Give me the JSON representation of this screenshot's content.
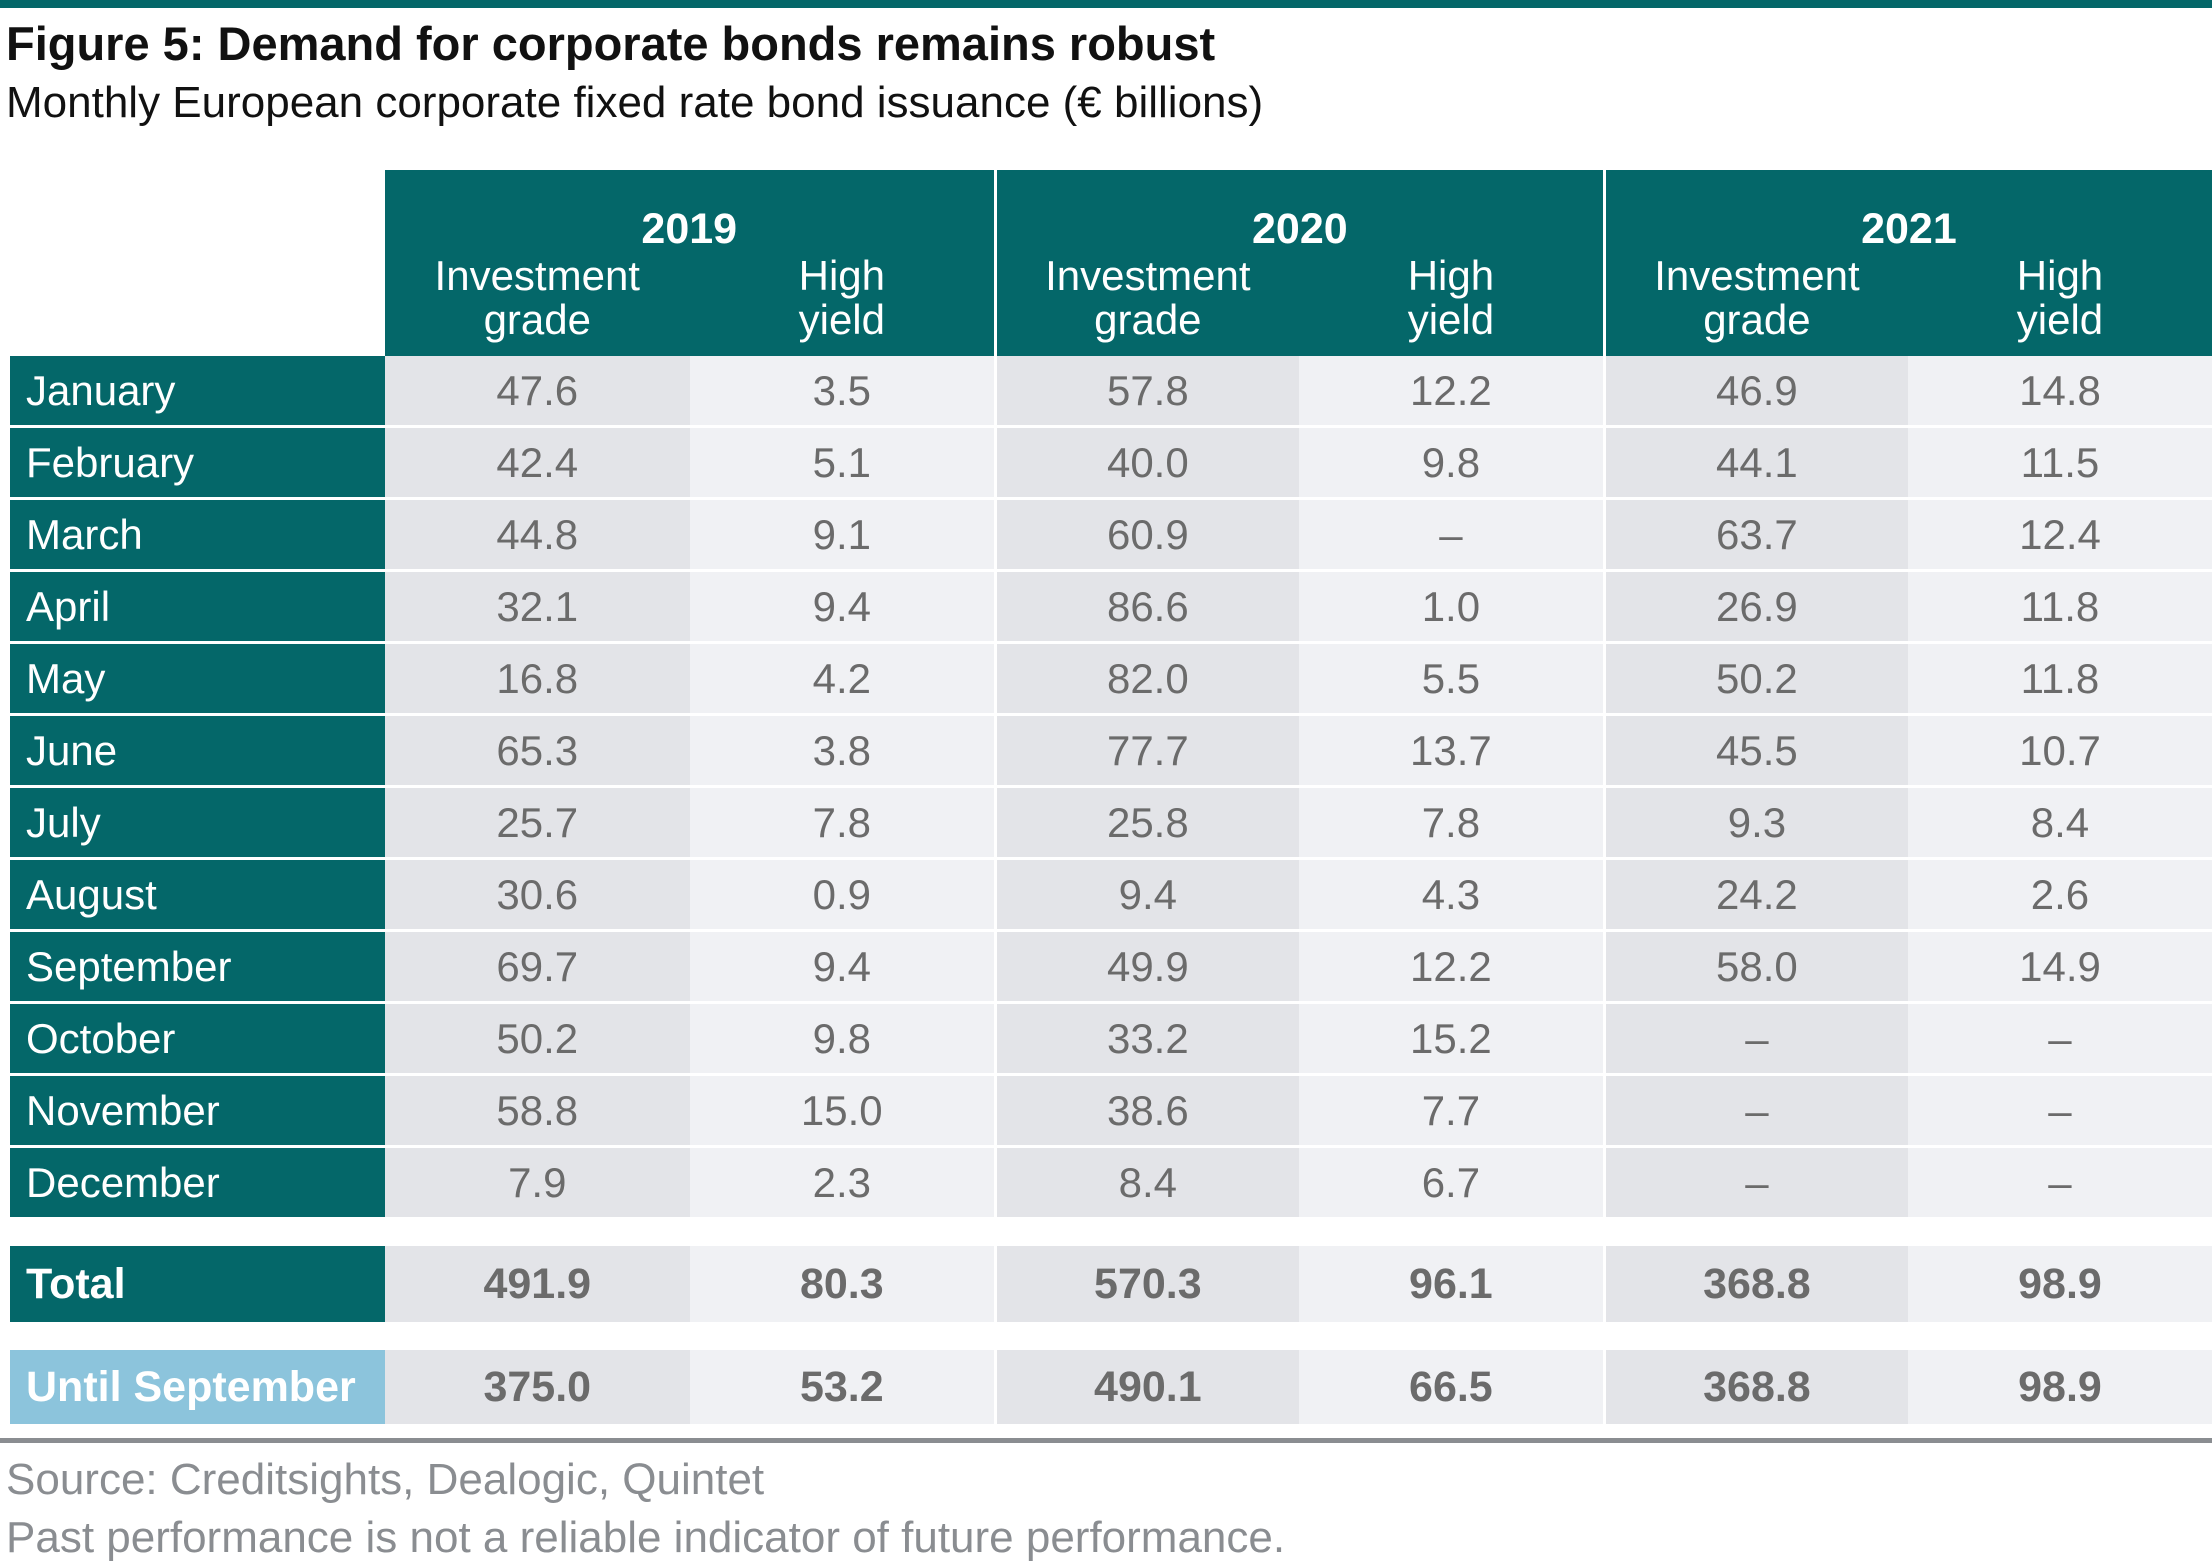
{
  "title": "Figure 5: Demand for corporate bonds remains robust",
  "subtitle": "Monthly European corporate fixed rate bond issuance (€ billions)",
  "colors": {
    "header_bg": "#046769",
    "highlight_bg": "#8cc4dc",
    "cell_dark": "#e3e4e8",
    "cell_light": "#f0f1f4",
    "value_text": "#6b6b6b"
  },
  "table": {
    "years": [
      "2019",
      "2020",
      "2021"
    ],
    "col_investment_grade": [
      "Investment",
      "grade"
    ],
    "col_high_yield": [
      "High",
      "yield"
    ],
    "rows": [
      {
        "month": "January",
        "values": [
          "47.6",
          "3.5",
          "57.8",
          "12.2",
          "46.9",
          "14.8"
        ]
      },
      {
        "month": "February",
        "values": [
          "42.4",
          "5.1",
          "40.0",
          "9.8",
          "44.1",
          "11.5"
        ]
      },
      {
        "month": "March",
        "values": [
          "44.8",
          "9.1",
          "60.9",
          "–",
          "63.7",
          "12.4"
        ]
      },
      {
        "month": "April",
        "values": [
          "32.1",
          "9.4",
          "86.6",
          "1.0",
          "26.9",
          "11.8"
        ]
      },
      {
        "month": "May",
        "values": [
          "16.8",
          "4.2",
          "82.0",
          "5.5",
          "50.2",
          "11.8"
        ]
      },
      {
        "month": "June",
        "values": [
          "65.3",
          "3.8",
          "77.7",
          "13.7",
          "45.5",
          "10.7"
        ]
      },
      {
        "month": "July",
        "values": [
          "25.7",
          "7.8",
          "25.8",
          "7.8",
          "9.3",
          "8.4"
        ]
      },
      {
        "month": "August",
        "values": [
          "30.6",
          "0.9",
          "9.4",
          "4.3",
          "24.2",
          "2.6"
        ]
      },
      {
        "month": "September",
        "values": [
          "69.7",
          "9.4",
          "49.9",
          "12.2",
          "58.0",
          "14.9"
        ]
      },
      {
        "month": "October",
        "values": [
          "50.2",
          "9.8",
          "33.2",
          "15.2",
          "–",
          "–"
        ]
      },
      {
        "month": "November",
        "values": [
          "58.8",
          "15.0",
          "38.6",
          "7.7",
          "–",
          "–"
        ]
      },
      {
        "month": "December",
        "values": [
          "7.9",
          "2.3",
          "8.4",
          "6.7",
          "–",
          "–"
        ]
      }
    ],
    "total": {
      "label": "Total",
      "values": [
        "491.9",
        "80.3",
        "570.3",
        "96.1",
        "368.8",
        "98.9"
      ]
    },
    "until_september": {
      "label": "Until September",
      "values": [
        "375.0",
        "53.2",
        "490.1",
        "66.5",
        "368.8",
        "98.9"
      ]
    }
  },
  "source": "Source: Creditsights, Dealogic, Quintet",
  "disclaimer": "Past performance is not a reliable indicator of future performance."
}
